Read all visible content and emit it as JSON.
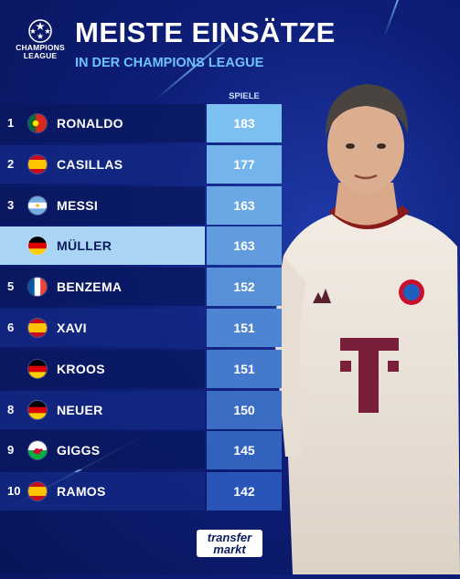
{
  "brand": {
    "competition_logo_text": [
      "CHAMPIONS",
      "LEAGUE"
    ],
    "source_logo_text": [
      "transfer",
      "markt"
    ]
  },
  "chart_data": {
    "type": "table",
    "title": "MEISTE EINSÄTZE",
    "subtitle": "IN DER CHAMPIONS LEAGUE",
    "value_header": "SPIELE",
    "rows": [
      {
        "rank": "1",
        "name": "RONALDO",
        "flag": "portugal",
        "value": 183
      },
      {
        "rank": "2",
        "name": "CASILLAS",
        "flag": "spain",
        "value": 177
      },
      {
        "rank": "3",
        "name": "MESSI",
        "flag": "argentina",
        "value": 163
      },
      {
        "rank": "",
        "name": "MÜLLER",
        "flag": "germany",
        "value": 163,
        "highlight": true
      },
      {
        "rank": "5",
        "name": "BENZEMA",
        "flag": "france",
        "value": 152
      },
      {
        "rank": "6",
        "name": "XAVI",
        "flag": "spain",
        "value": 151
      },
      {
        "rank": "",
        "name": "KROOS",
        "flag": "germany",
        "value": 151
      },
      {
        "rank": "8",
        "name": "NEUER",
        "flag": "germany",
        "value": 150
      },
      {
        "rank": "9",
        "name": "GIGGS",
        "flag": "wales",
        "value": 145
      },
      {
        "rank": "10",
        "name": "RAMOS",
        "flag": "spain",
        "value": 142
      }
    ]
  },
  "colors": {
    "background": "#0e1e78",
    "value_cell_top": "#7cc0f2",
    "value_cell_bottom": "#2a55b8",
    "highlight": "#a9d4f4",
    "subtitle": "#6ec3ff"
  }
}
